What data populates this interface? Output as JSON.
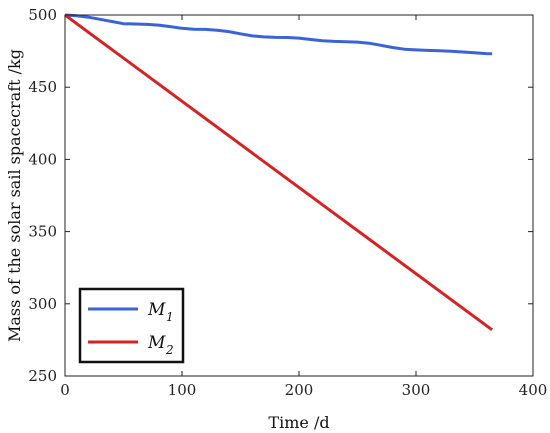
{
  "chart_data": {
    "type": "line",
    "xlabel": "Time /d",
    "ylabel": "Mass of the solar sail spacecraft /kg",
    "xlim": [
      0,
      400
    ],
    "ylim": [
      250,
      500
    ],
    "xticks": [
      "0",
      "100",
      "200",
      "300",
      "400"
    ],
    "yticks": [
      "250",
      "300",
      "350",
      "400",
      "450",
      "500"
    ],
    "grid": false,
    "legend_position": "bottom-left",
    "series": [
      {
        "name": "M",
        "subscript": "1",
        "color": "#3a63d8",
        "x": [
          0,
          10,
          20,
          30,
          40,
          50,
          60,
          70,
          80,
          90,
          100,
          110,
          120,
          130,
          140,
          150,
          160,
          170,
          180,
          190,
          200,
          210,
          220,
          230,
          240,
          250,
          260,
          270,
          280,
          290,
          300,
          310,
          320,
          330,
          340,
          350,
          360,
          365
        ],
        "y": [
          500,
          499.5,
          498.5,
          497,
          495.5,
          494,
          493.8,
          493.5,
          493,
          492,
          490.8,
          490.2,
          490,
          489.5,
          488.5,
          487,
          485.5,
          484.8,
          484.5,
          484.4,
          484,
          483,
          482.2,
          481.7,
          481.5,
          481.2,
          480.5,
          479,
          477.5,
          476.3,
          475.8,
          475.5,
          475.3,
          474.9,
          474.4,
          473.8,
          473.3,
          473.2
        ]
      },
      {
        "name": "M",
        "subscript": "2",
        "color": "#d62222",
        "x": [
          0,
          365
        ],
        "y": [
          500,
          282
        ]
      }
    ]
  }
}
